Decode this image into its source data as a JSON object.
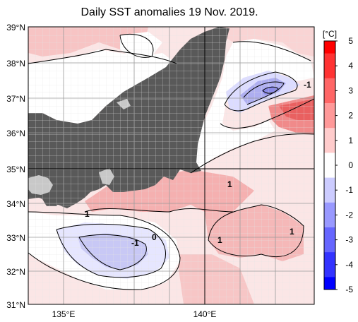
{
  "title": "Daily SST anomalies 19 Nov. 2019.",
  "map": {
    "lat_labels": [
      "39°N",
      "38°N",
      "37°N",
      "36°N",
      "35°N",
      "34°N",
      "33°N",
      "32°N",
      "31°N"
    ],
    "lon_labels": [
      "135°E",
      "140°E"
    ],
    "contour_labels": [
      "-1",
      "-1",
      "0",
      "1",
      "1",
      "1",
      "1"
    ]
  },
  "colorbar": {
    "unit": "[°C]",
    "ticks": [
      "5",
      "4",
      "3",
      "2",
      "1",
      "0",
      "-1",
      "-2",
      "-3",
      "-4",
      "-5"
    ],
    "colors": [
      "#ff0000",
      "#ff3333",
      "#ff6666",
      "#ff9999",
      "#ffcccc",
      "#ffffff",
      "#ccccff",
      "#9999ff",
      "#6666ff",
      "#3333ff",
      "#0000ff"
    ]
  }
}
